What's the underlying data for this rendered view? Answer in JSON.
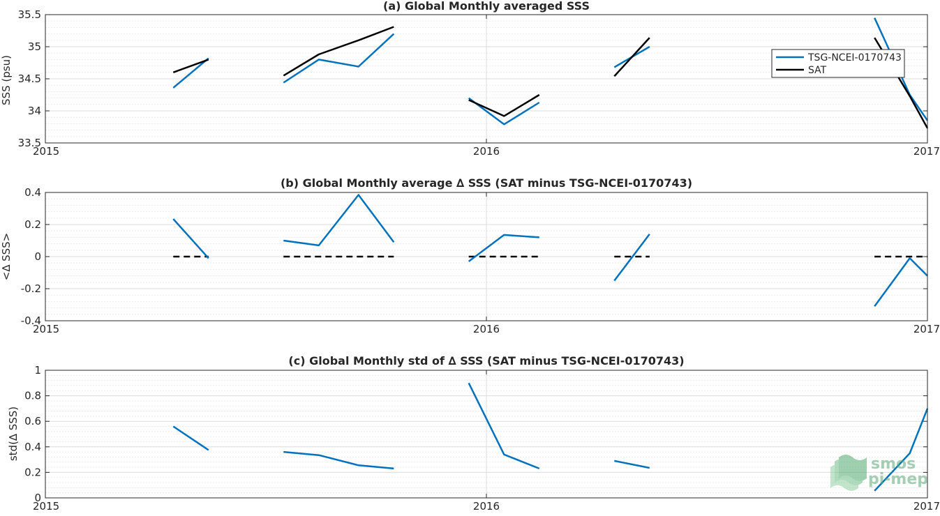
{
  "colors": {
    "tsg": "#0072BD",
    "sat": "#000000",
    "grid": "#dcdcdc",
    "axis": "#262626",
    "logo": "#5aa878"
  },
  "logo": {
    "line1": "smos",
    "line2": "pi-mep"
  },
  "chart_data": [
    {
      "type": "line",
      "title": "(a) Global Monthly averaged SSS",
      "ylabel": "SSS (psu)",
      "xlabel": "",
      "xlim": [
        2015.0,
        2017.0
      ],
      "ylim": [
        33.5,
        35.5
      ],
      "xticks": [
        2015,
        2016,
        2017
      ],
      "xtick_labels": [
        "2015",
        "2016",
        "2017"
      ],
      "yticks": [
        33.5,
        34,
        34.5,
        35,
        35.5
      ],
      "ytick_labels": [
        "33.5",
        "34",
        "34.5",
        "35",
        "35.5"
      ],
      "grid": true,
      "minor_grid": true,
      "legend": {
        "placement": "right",
        "entries": [
          "TSG-NCEI-0170743",
          "SAT"
        ]
      },
      "series": [
        {
          "name": "TSG-NCEI-0170743",
          "color_key": "tsg",
          "segments": [
            [
              [
                2015.29,
                34.36
              ],
              [
                2015.37,
                34.82
              ]
            ],
            [
              [
                2015.54,
                34.44
              ],
              [
                2015.62,
                34.8
              ],
              [
                2015.71,
                34.69
              ],
              [
                2015.79,
                35.2
              ]
            ],
            [
              [
                2015.96,
                34.2
              ],
              [
                2016.04,
                33.79
              ],
              [
                2016.12,
                34.13
              ]
            ],
            [
              [
                2016.29,
                34.68
              ],
              [
                2016.37,
                35.0
              ]
            ],
            [
              [
                2016.88,
                35.45
              ],
              [
                2016.96,
                34.25
              ],
              [
                2017.0,
                33.85
              ]
            ]
          ]
        },
        {
          "name": "SAT",
          "color_key": "sat",
          "segments": [
            [
              [
                2015.29,
                34.6
              ],
              [
                2015.37,
                34.8
              ]
            ],
            [
              [
                2015.54,
                34.55
              ],
              [
                2015.62,
                34.88
              ],
              [
                2015.71,
                35.1
              ],
              [
                2015.79,
                35.31
              ]
            ],
            [
              [
                2015.96,
                34.17
              ],
              [
                2016.04,
                33.92
              ],
              [
                2016.12,
                34.25
              ]
            ],
            [
              [
                2016.29,
                34.54
              ],
              [
                2016.37,
                35.14
              ]
            ],
            [
              [
                2016.88,
                35.14
              ],
              [
                2016.96,
                34.23
              ],
              [
                2017.0,
                33.73
              ]
            ]
          ]
        }
      ]
    },
    {
      "type": "line",
      "title": "(b) Global Monthly average ∆ SSS (SAT minus TSG-NCEI-0170743)",
      "ylabel": "<∆ SSS>",
      "xlabel": "",
      "xlim": [
        2015.0,
        2017.0
      ],
      "ylim": [
        -0.4,
        0.4
      ],
      "xticks": [
        2015,
        2016,
        2017
      ],
      "xtick_labels": [
        "2015",
        "2016",
        "2017"
      ],
      "yticks": [
        -0.4,
        -0.2,
        0,
        0.2,
        0.4
      ],
      "ytick_labels": [
        "-0.4",
        "-0.2",
        "0",
        "0.2",
        "0.4"
      ],
      "grid": true,
      "minor_grid": true,
      "series": [
        {
          "name": "",
          "color_key": "tsg",
          "segments": [
            [
              [
                2015.29,
                0.235
              ],
              [
                2015.37,
                -0.01
              ]
            ],
            [
              [
                2015.54,
                0.1
              ],
              [
                2015.62,
                0.07
              ],
              [
                2015.71,
                0.385
              ],
              [
                2015.79,
                0.09
              ]
            ],
            [
              [
                2015.96,
                -0.03
              ],
              [
                2016.04,
                0.135
              ],
              [
                2016.12,
                0.12
              ]
            ],
            [
              [
                2016.29,
                -0.15
              ],
              [
                2016.37,
                0.14
              ]
            ],
            [
              [
                2016.88,
                -0.31
              ],
              [
                2016.96,
                -0.01
              ],
              [
                2017.0,
                -0.12
              ]
            ]
          ]
        }
      ],
      "reference": {
        "style": "dashed",
        "color_key": "sat",
        "y": 0,
        "segments": [
          [
            2015.29,
            2015.37
          ],
          [
            2015.54,
            2015.79
          ],
          [
            2015.96,
            2016.12
          ],
          [
            2016.29,
            2016.37
          ],
          [
            2016.88,
            2017.0
          ]
        ]
      }
    },
    {
      "type": "line",
      "title": "(c) Global Monthly std of ∆ SSS (SAT minus TSG-NCEI-0170743)",
      "ylabel": "std(∆ SSS)",
      "xlabel": "",
      "xlim": [
        2015.0,
        2017.0
      ],
      "ylim": [
        0,
        1
      ],
      "xticks": [
        2015,
        2016,
        2017
      ],
      "xtick_labels": [
        "2015",
        "2016",
        "2017"
      ],
      "yticks": [
        0,
        0.2,
        0.4,
        0.6,
        0.8,
        1
      ],
      "ytick_labels": [
        "0",
        "0.2",
        "0.4",
        "0.6",
        "0.8",
        "1"
      ],
      "grid": true,
      "minor_grid": true,
      "series": [
        {
          "name": "",
          "color_key": "tsg",
          "segments": [
            [
              [
                2015.29,
                0.56
              ],
              [
                2015.37,
                0.375
              ]
            ],
            [
              [
                2015.54,
                0.36
              ],
              [
                2015.62,
                0.335
              ],
              [
                2015.71,
                0.255
              ],
              [
                2015.79,
                0.23
              ]
            ],
            [
              [
                2015.96,
                0.9
              ],
              [
                2016.04,
                0.34
              ],
              [
                2016.12,
                0.23
              ]
            ],
            [
              [
                2016.29,
                0.29
              ],
              [
                2016.37,
                0.235
              ]
            ],
            [
              [
                2016.88,
                0.055
              ],
              [
                2016.96,
                0.35
              ],
              [
                2017.0,
                0.7
              ]
            ]
          ]
        }
      ]
    }
  ]
}
